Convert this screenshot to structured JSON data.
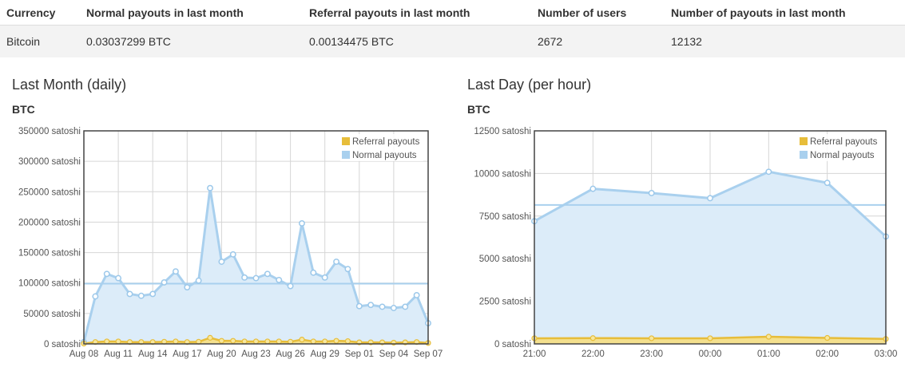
{
  "table": {
    "headers": [
      "Currency",
      "Normal payouts in last month",
      "Referral payouts in last month",
      "Number of users",
      "Number of payouts in last month"
    ],
    "rows": [
      [
        "Bitcoin",
        "0.03037299 BTC",
        "0.00134475 BTC",
        "2672",
        "12132"
      ]
    ]
  },
  "colors": {
    "normal_line": "#a9d0ee",
    "normal_fill": "#dcecf9",
    "normal_point_stroke": "#9cc8ea",
    "referral_line": "#e7bd3a",
    "referral_fill": "#f4e08e",
    "referral_point_fill": "#f7e79e",
    "avg_line": "#a9d0ee",
    "grid": "#d6d6d6",
    "axis": "#444444"
  },
  "chart_data": [
    {
      "type": "line",
      "title": "Last Month (daily)",
      "ylabel": "BTC",
      "ylim": [
        0,
        350000
      ],
      "y_ticks": [
        0,
        50000,
        100000,
        150000,
        200000,
        250000,
        300000,
        350000
      ],
      "y_tick_labels": [
        "0 satoshi",
        "50000 satoshi",
        "100000 satoshi",
        "150000 satoshi",
        "200000 satoshi",
        "250000 satoshi",
        "300000 satoshi",
        "350000 satoshi"
      ],
      "x_tick_labels": [
        "Aug 08",
        "Aug 11",
        "Aug 14",
        "Aug 17",
        "Aug 20",
        "Aug 23",
        "Aug 26",
        "Aug 29",
        "Sep 01",
        "Sep 04",
        "Sep 07"
      ],
      "x_tick_every": 3,
      "grid": true,
      "legend_position": "top-right",
      "legend": [
        "Referral payouts",
        "Normal payouts"
      ],
      "average": 99000,
      "series": [
        {
          "name": "Normal payouts",
          "values": [
            3000,
            78000,
            115000,
            108000,
            82000,
            79000,
            82000,
            101000,
            119000,
            93000,
            104000,
            256000,
            135000,
            147000,
            109000,
            108000,
            115000,
            105000,
            95000,
            198000,
            117000,
            109000,
            135000,
            123000,
            62000,
            64000,
            61000,
            59000,
            61000,
            80000,
            34000
          ]
        },
        {
          "name": "Referral payouts",
          "values": [
            500,
            3000,
            4000,
            4000,
            3000,
            3000,
            3000,
            3500,
            4000,
            3000,
            3500,
            10000,
            5000,
            5000,
            4000,
            4000,
            4000,
            4000,
            3500,
            7000,
            4000,
            4000,
            5000,
            4500,
            2500,
            2500,
            2500,
            2000,
            2500,
            3000,
            1500
          ]
        }
      ]
    },
    {
      "type": "line",
      "title": "Last Day (per hour)",
      "ylabel": "BTC",
      "ylim": [
        0,
        12500
      ],
      "y_ticks": [
        0,
        2500,
        5000,
        7500,
        10000,
        12500
      ],
      "y_tick_labels": [
        "0 satoshi",
        "2500 satoshi",
        "5000 satoshi",
        "7500 satoshi",
        "10000 satoshi",
        "12500 satoshi"
      ],
      "x_tick_labels": [
        "21:00",
        "22:00",
        "23:00",
        "00:00",
        "01:00",
        "02:00",
        "03:00"
      ],
      "x_tick_every": 1,
      "grid": true,
      "legend_position": "top-right",
      "legend": [
        "Referral payouts",
        "Normal payouts"
      ],
      "average": 8150,
      "series": [
        {
          "name": "Normal payouts",
          "values": [
            7200,
            9100,
            8850,
            8550,
            10100,
            9450,
            6300
          ]
        },
        {
          "name": "Referral payouts",
          "values": [
            330,
            340,
            330,
            330,
            420,
            350,
            290
          ]
        }
      ]
    }
  ]
}
